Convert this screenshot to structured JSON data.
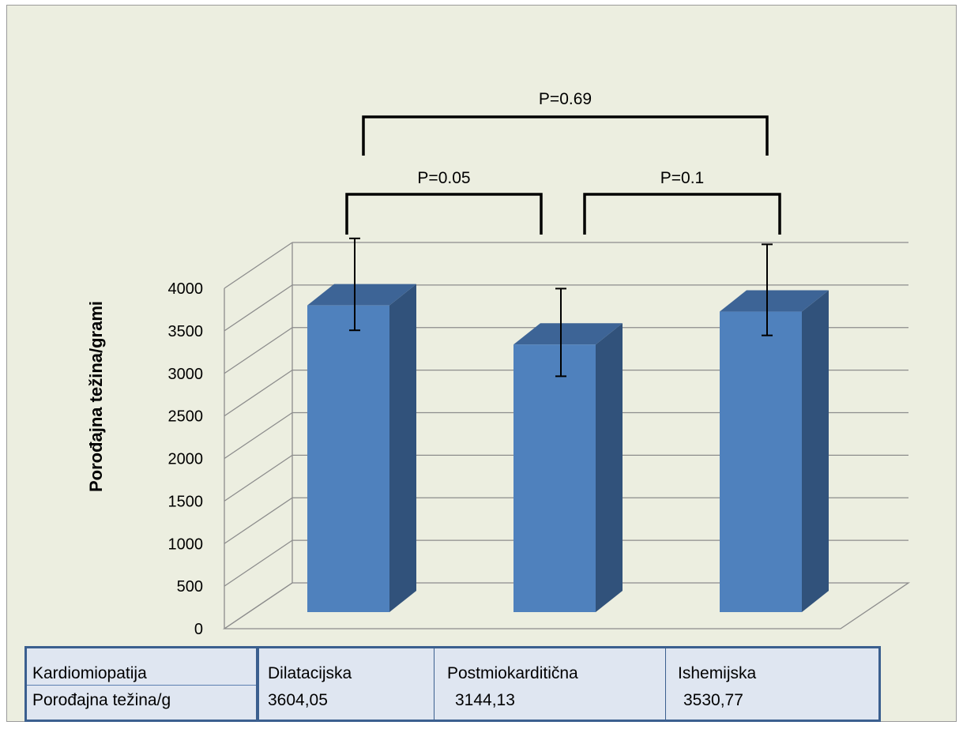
{
  "chart_data": {
    "type": "bar",
    "title": "",
    "xlabel": "",
    "ylabel": "Porođajna težina/grami",
    "categories": [
      "Dilatacijska",
      "Postmiokarditična",
      "Ishemijska"
    ],
    "values": [
      3604.05,
      3144.13,
      3530.77
    ],
    "error_ranges": [
      [
        3200,
        4280
      ],
      [
        2660,
        3690
      ],
      [
        3140,
        4210
      ]
    ],
    "ylim": [
      0,
      4000
    ],
    "yticks": [
      "0",
      "500",
      "1000",
      "1500",
      "2000",
      "2500",
      "3000",
      "3500",
      "4000"
    ],
    "grid": true,
    "legend": "none",
    "bar_color": "#4f81bd",
    "comparisons": [
      {
        "from": 0,
        "to": 1,
        "label": "P=0.05"
      },
      {
        "from": 1,
        "to": 2,
        "label": "P=0.1"
      },
      {
        "from": 0,
        "to": 2,
        "label": "P=0.69"
      }
    ]
  },
  "table": {
    "header_label": "Kardiomiopatija",
    "row_label": "Porođajna težina/g",
    "columns": [
      "Dilatacijska",
      "Postmiokarditična",
      "Ishemijska"
    ],
    "values": [
      "3604,05",
      "3144,13",
      "3530,77"
    ]
  }
}
